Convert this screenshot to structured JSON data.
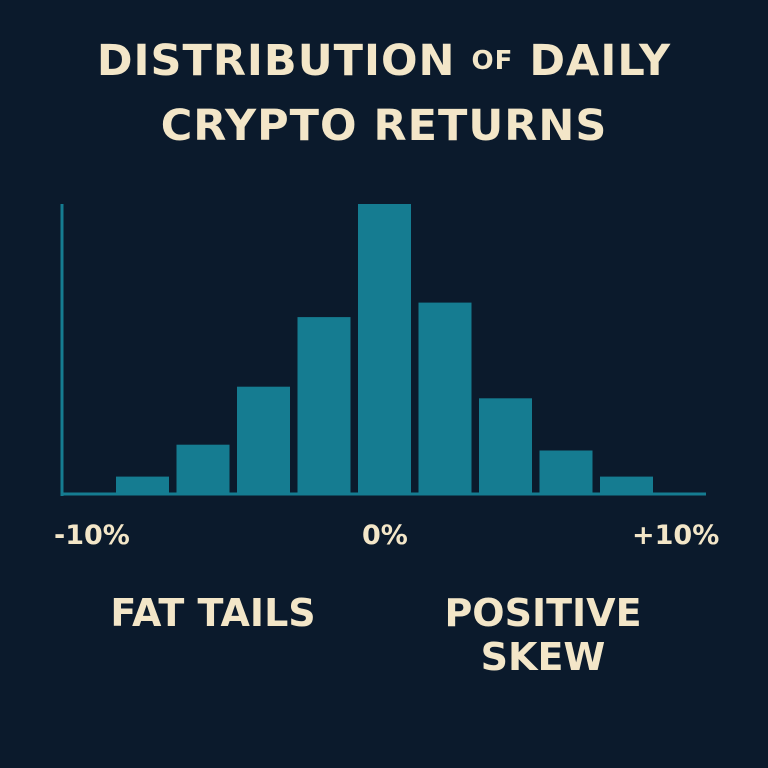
{
  "chart_data": {
    "type": "bar",
    "title_line1_pre": "DISTRIBUTION",
    "title_line1_of": "OF",
    "title_line1_post": "DAILY",
    "title_line2": "CRYPTO RETURNS",
    "x_ticks": [
      "-10%",
      "0%",
      "+10%"
    ],
    "values": [
      0.06,
      0.17,
      0.37,
      0.61,
      1.0,
      0.66,
      0.33,
      0.15,
      0.06
    ],
    "ylim": [
      0,
      1
    ],
    "annotations": {
      "left": "FAT TAILS",
      "right_line1": "POSITIVE",
      "right_line2": "SKEW"
    },
    "colors": {
      "bar": "#157c91",
      "axis": "#157c91",
      "background": "#0b1a2c",
      "text": "#f3e6c8"
    },
    "grid": false
  }
}
